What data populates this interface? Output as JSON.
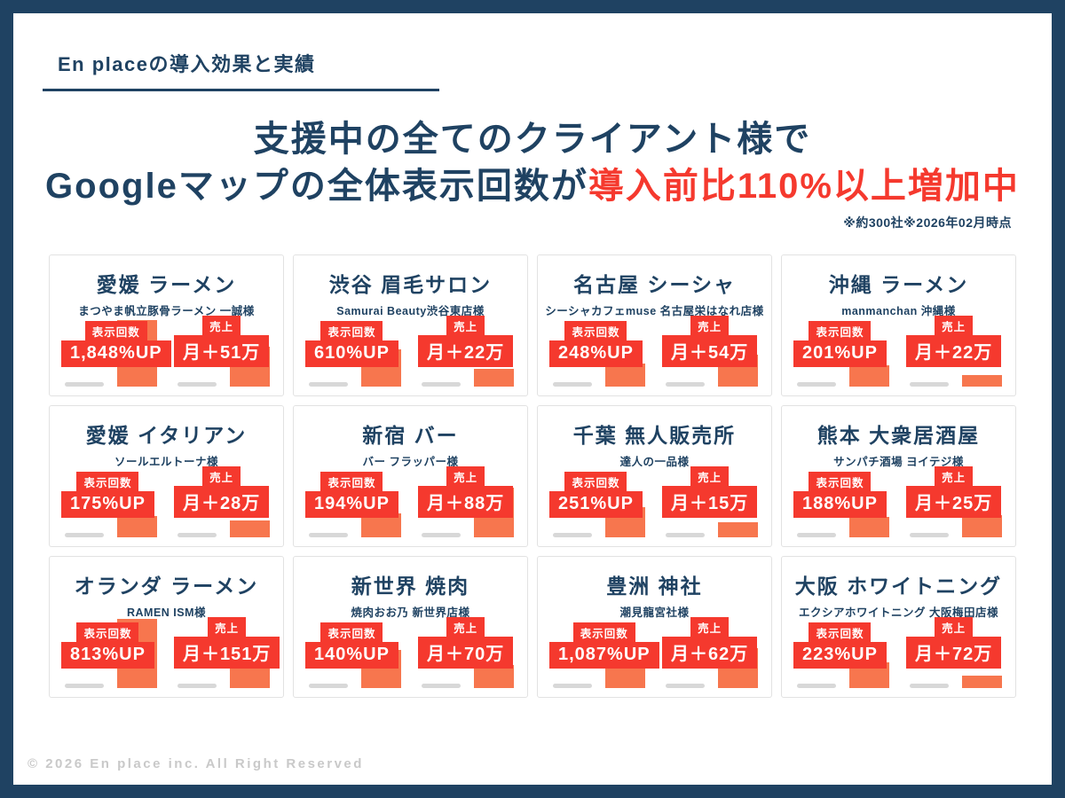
{
  "page": {
    "eyebrow": "En placeの導入効果と実績",
    "title_line1": "支援中の全てのクライアント様で",
    "title_line2_dark": "Googleマップの全体表示回数が",
    "title_line2_red": "導入前比110%以上増加中",
    "note": "※約300社※2026年02月時点",
    "footer": "© 2026 En place inc. All Right Reserved"
  },
  "labels": {
    "impressions": "表示回数",
    "sales": "売上"
  },
  "colors": {
    "navy": "#1F4262",
    "red": "#F5392E",
    "orange": "#F7764E",
    "graybar": "#D8D8D8",
    "cardborder": "#E2E2E2",
    "footer": "#C9C9C9"
  },
  "cards": [
    {
      "title": "愛媛 ラーメン",
      "client": "まつやま帆立豚骨ラーメン 一誠様",
      "impressions": "1,848%UP",
      "sales": "月＋51万",
      "imp_bar": 75,
      "sales_bar": 45
    },
    {
      "title": "渋谷 眉毛サロン",
      "client": "Samurai Beauty渋谷東店様",
      "impressions": "610%UP",
      "sales": "月＋22万",
      "imp_bar": 42,
      "sales_bar": 20
    },
    {
      "title": "名古屋 シーシャ",
      "client": "シーシャカフェmuse 名古屋栄はなれ店様",
      "impressions": "248%UP",
      "sales": "月＋54万",
      "imp_bar": 26,
      "sales_bar": 36
    },
    {
      "title": "沖縄 ラーメン",
      "client": "manmanchan 沖縄様",
      "impressions": "201%UP",
      "sales": "月＋22万",
      "imp_bar": 24,
      "sales_bar": 13
    },
    {
      "title": "愛媛 イタリアン",
      "client": "ソールエルトーナ様",
      "impressions": "175%UP",
      "sales": "月＋28万",
      "imp_bar": 24,
      "sales_bar": 19
    },
    {
      "title": "新宿 バー",
      "client": "バー フラッパー様",
      "impressions": "194%UP",
      "sales": "月＋88万",
      "imp_bar": 27,
      "sales_bar": 56
    },
    {
      "title": "千葉 無人販売所",
      "client": "達人の一品様",
      "impressions": "251%UP",
      "sales": "月＋15万",
      "imp_bar": 34,
      "sales_bar": 17
    },
    {
      "title": "熊本 大衆居酒屋",
      "client": "サンパチ酒場 ヨイテジ様",
      "impressions": "188%UP",
      "sales": "月＋25万",
      "imp_bar": 23,
      "sales_bar": 25
    },
    {
      "title": "オランダ ラーメン",
      "client": "RAMEN ISM様",
      "impressions": "813%UP",
      "sales": "月＋151万",
      "imp_bar": 78,
      "sales_bar": 48
    },
    {
      "title": "新世界 焼肉",
      "client": "焼肉おお乃 新世界店様",
      "impressions": "140%UP",
      "sales": "月＋70万",
      "imp_bar": 43,
      "sales_bar": 26
    },
    {
      "title": "豊洲 神社",
      "client": "潮見龍宮社様",
      "impressions": "1,087%UP",
      "sales": "月＋62万",
      "imp_bar": 32,
      "sales_bar": 45
    },
    {
      "title": "大阪 ホワイトニング",
      "client": "エクシアホワイトニング 大阪梅田店様",
      "impressions": "223%UP",
      "sales": "月＋72万",
      "imp_bar": 29,
      "sales_bar": 14
    }
  ]
}
